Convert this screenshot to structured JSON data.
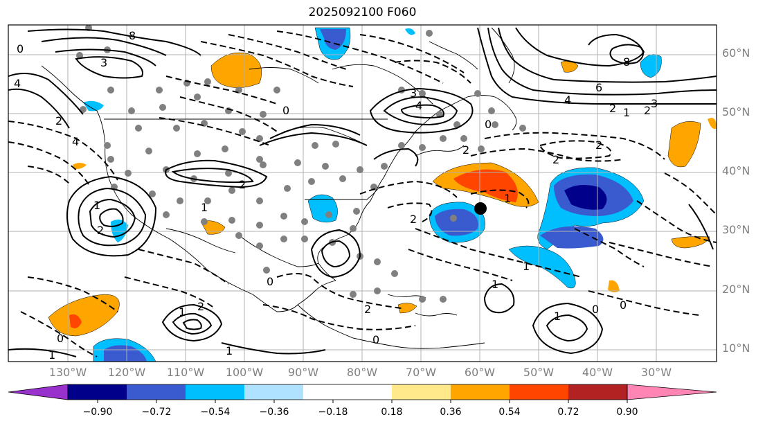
{
  "title": "2025092100 F060",
  "latitude_labels": [
    "60°N",
    "50°N",
    "40°N",
    "30°N",
    "20°N",
    "10°N"
  ],
  "longitude_labels": [
    "130°W",
    "120°W",
    "110°W",
    "100°W",
    "90°W",
    "80°W",
    "70°W",
    "60°W",
    "50°W",
    "40°W",
    "30°W"
  ],
  "colorbar": {
    "ticks": [
      "−0.90",
      "−0.72",
      "−0.54",
      "−0.36",
      "−0.18",
      "0.18",
      "0.36",
      "0.54",
      "0.72",
      "0.90"
    ],
    "colors": [
      "#9932cc",
      "#00008b",
      "#3a5bd0",
      "#00bfff",
      "#aee2ff",
      "#ffffff",
      "#ffe98a",
      "#ffa500",
      "#ff4500",
      "#b22222",
      "#ff85b5"
    ]
  },
  "contour_labels": [
    "0",
    "8",
    "3",
    "4",
    "2",
    "0",
    "3",
    "4",
    "6",
    "8",
    "4",
    "2",
    "1",
    "2",
    "3",
    "0",
    "2",
    "4",
    "1",
    "2",
    "1",
    "2",
    "2",
    "1",
    "2",
    "1",
    "2",
    "0",
    "1",
    "1",
    "0",
    "1",
    "2",
    "1",
    "0",
    "1",
    "0",
    "2",
    "0"
  ],
  "colors": {
    "contour": "#000000",
    "station": "#808080",
    "grid": "#b0b0b0",
    "marker": "#000000"
  }
}
